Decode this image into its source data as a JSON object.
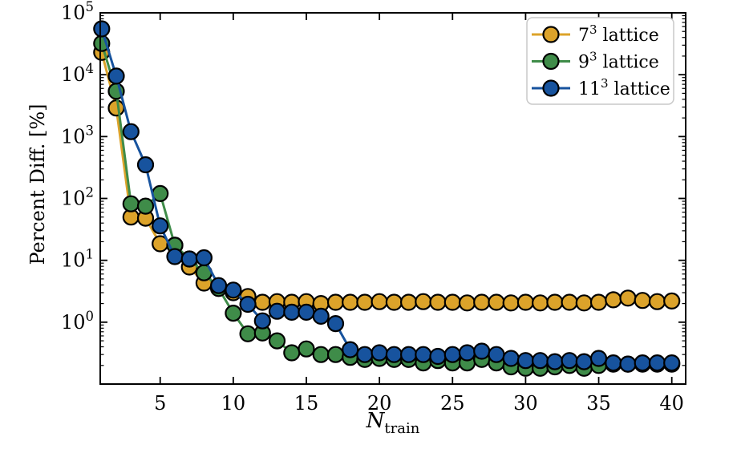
{
  "figure": {
    "ylabel": "Percent Diff. [%]",
    "xlabel": {
      "main": "N",
      "subscript": "train"
    },
    "background_color": "#ffffff",
    "frame_color": "#000000",
    "tick_label_base": "10"
  },
  "chart_data": {
    "type": "line",
    "y_scale": "log",
    "xlabel": "N_train",
    "ylabel": "Percent Diff. [%]",
    "xlim": [
      0.9,
      40.95
    ],
    "ylim": [
      0.1,
      100000
    ],
    "x_major_ticks": [
      5,
      10,
      15,
      20,
      25,
      30,
      35,
      40
    ],
    "y_major_tick_exponents": [
      0,
      1,
      2,
      3,
      4,
      5
    ],
    "grid": "off",
    "legend_position": "top-right",
    "legend_border_color": "#c9c9c9",
    "marker_edge_color": "#000000",
    "x": [
      1,
      2,
      3,
      4,
      5,
      6,
      7,
      8,
      9,
      10,
      11,
      12,
      13,
      14,
      15,
      16,
      17,
      18,
      19,
      20,
      21,
      22,
      23,
      24,
      25,
      26,
      27,
      28,
      29,
      30,
      31,
      32,
      33,
      34,
      35,
      36,
      37,
      38,
      39,
      40
    ],
    "series": [
      {
        "name": "7^3 lattice",
        "label": {
          "prefix": "7",
          "exponent": "3",
          "suffix": " lattice"
        },
        "color": "#DCA32A",
        "values": [
          23000,
          2900,
          50,
          48,
          18.5,
          17.5,
          7.8,
          4.3,
          3.6,
          3.0,
          2.6,
          2.1,
          2.15,
          2.1,
          2.15,
          2.0,
          2.1,
          2.1,
          2.1,
          2.15,
          2.1,
          2.1,
          2.15,
          2.1,
          2.1,
          2.05,
          2.1,
          2.1,
          2.05,
          2.1,
          2.05,
          2.1,
          2.1,
          2.05,
          2.1,
          2.3,
          2.45,
          2.25,
          2.15,
          2.2
        ]
      },
      {
        "name": "9^3 lattice",
        "label": {
          "prefix": "9",
          "exponent": "3",
          "suffix": " lattice"
        },
        "color": "#3F8C49",
        "values": [
          32000,
          5400,
          82,
          75,
          120,
          17.5,
          10.5,
          6.3,
          3.5,
          1.4,
          0.65,
          0.67,
          0.5,
          0.32,
          0.37,
          0.3,
          0.3,
          0.27,
          0.25,
          0.26,
          0.25,
          0.25,
          0.22,
          0.24,
          0.22,
          0.22,
          0.25,
          0.22,
          0.19,
          0.18,
          0.18,
          0.19,
          0.2,
          0.18,
          0.2,
          0.21,
          0.21,
          0.21,
          0.21,
          0.21
        ]
      },
      {
        "name": "11^3 lattice",
        "label": {
          "prefix": "11",
          "exponent": "3",
          "suffix": " lattice"
        },
        "color": "#17539E",
        "values": [
          55000,
          9500,
          1200,
          350,
          36,
          11.5,
          10.5,
          11,
          3.9,
          3.3,
          1.95,
          1.05,
          1.5,
          1.45,
          1.45,
          1.25,
          0.95,
          0.36,
          0.3,
          0.32,
          0.3,
          0.3,
          0.3,
          0.28,
          0.3,
          0.32,
          0.34,
          0.3,
          0.26,
          0.24,
          0.24,
          0.23,
          0.24,
          0.23,
          0.26,
          0.22,
          0.21,
          0.22,
          0.22,
          0.22
        ]
      }
    ]
  }
}
